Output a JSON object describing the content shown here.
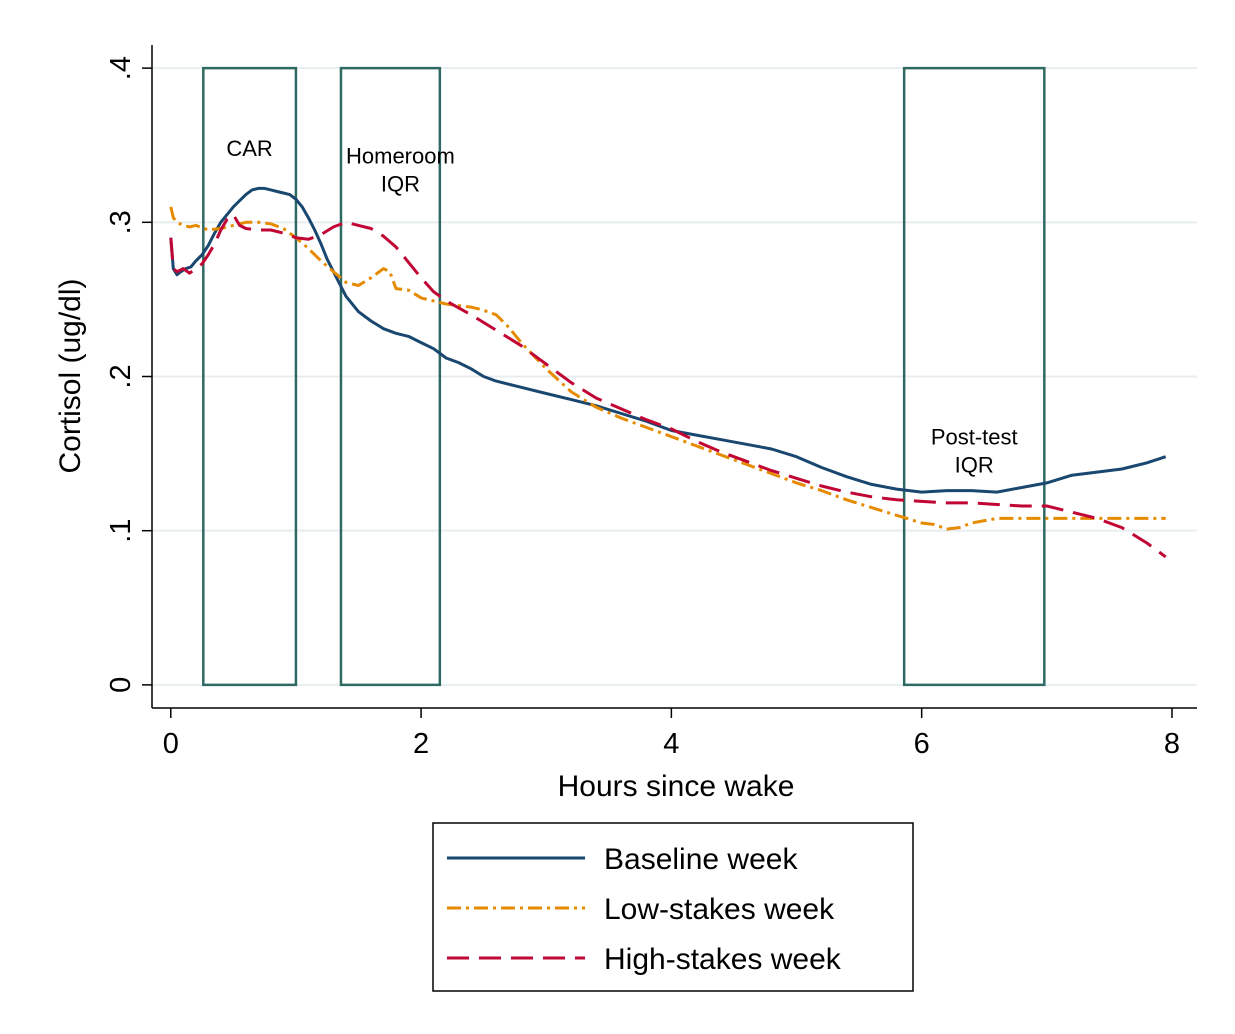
{
  "chart_data": {
    "type": "line",
    "title": "",
    "xlabel": "Hours since wake",
    "ylabel": "Cortisol (ug/dl)",
    "xlim": [
      -0.15,
      8.2
    ],
    "ylim": [
      -0.015,
      0.415
    ],
    "xticks": [
      0,
      2,
      4,
      6,
      8
    ],
    "xtick_labels": [
      "0",
      "2",
      "4",
      "6",
      "8"
    ],
    "yticks": [
      0,
      0.1,
      0.2,
      0.3,
      0.4
    ],
    "ytick_labels": [
      "0",
      ".1",
      ".2",
      ".3",
      ".4"
    ],
    "grid": "horizontal",
    "legend_position": "bottom",
    "colors": {
      "background": "#ffffff",
      "grid": "#e8eef0",
      "axis": "#000000",
      "box": "#2f6a62"
    },
    "windows": [
      {
        "x0": 0.26,
        "x1": 1.0,
        "y0": 0,
        "y1": 0.4,
        "label": [
          "CAR"
        ]
      },
      {
        "x0": 1.36,
        "x1": 2.15,
        "y0": 0,
        "y1": 0.4,
        "label": [
          "Homeroom",
          "IQR"
        ]
      },
      {
        "x0": 5.86,
        "x1": 6.98,
        "y0": 0,
        "y1": 0.4,
        "label": [
          "Post-test",
          "IQR"
        ]
      }
    ],
    "series": [
      {
        "name": "Baseline week",
        "color": "#1a476f",
        "dash": "",
        "x": [
          0,
          0.02,
          0.05,
          0.08,
          0.12,
          0.16,
          0.2,
          0.25,
          0.3,
          0.35,
          0.4,
          0.45,
          0.5,
          0.55,
          0.6,
          0.65,
          0.7,
          0.75,
          0.8,
          0.85,
          0.9,
          0.95,
          1.0,
          1.05,
          1.1,
          1.15,
          1.2,
          1.25,
          1.3,
          1.35,
          1.4,
          1.5,
          1.6,
          1.7,
          1.8,
          1.9,
          2.0,
          2.1,
          2.2,
          2.3,
          2.4,
          2.5,
          2.6,
          2.8,
          3.0,
          3.2,
          3.4,
          3.6,
          3.8,
          4.0,
          4.2,
          4.4,
          4.6,
          4.8,
          5.0,
          5.2,
          5.4,
          5.6,
          5.8,
          6.0,
          6.2,
          6.4,
          6.6,
          6.8,
          7.0,
          7.2,
          7.4,
          7.6,
          7.8,
          7.95
        ],
        "y": [
          0.29,
          0.27,
          0.266,
          0.268,
          0.27,
          0.271,
          0.275,
          0.279,
          0.285,
          0.293,
          0.3,
          0.305,
          0.31,
          0.314,
          0.318,
          0.321,
          0.322,
          0.322,
          0.321,
          0.32,
          0.319,
          0.318,
          0.315,
          0.31,
          0.303,
          0.295,
          0.286,
          0.276,
          0.268,
          0.26,
          0.252,
          0.242,
          0.236,
          0.231,
          0.228,
          0.226,
          0.222,
          0.218,
          0.212,
          0.209,
          0.205,
          0.2,
          0.197,
          0.193,
          0.189,
          0.185,
          0.181,
          0.176,
          0.171,
          0.165,
          0.162,
          0.159,
          0.156,
          0.153,
          0.148,
          0.141,
          0.135,
          0.13,
          0.127,
          0.125,
          0.126,
          0.126,
          0.125,
          0.128,
          0.131,
          0.136,
          0.138,
          0.14,
          0.144,
          0.148
        ]
      },
      {
        "name": "Low-stakes week",
        "color": "#e68a00",
        "dash": "14 5 3 5",
        "x": [
          0,
          0.02,
          0.05,
          0.1,
          0.15,
          0.2,
          0.3,
          0.4,
          0.5,
          0.6,
          0.7,
          0.8,
          0.9,
          1.0,
          1.1,
          1.2,
          1.3,
          1.4,
          1.5,
          1.6,
          1.7,
          1.75,
          1.8,
          1.9,
          2.0,
          2.1,
          2.2,
          2.3,
          2.4,
          2.5,
          2.6,
          2.7,
          2.8,
          3.0,
          3.2,
          3.4,
          3.6,
          3.8,
          4.0,
          4.2,
          4.4,
          4.6,
          4.8,
          5.0,
          5.2,
          5.4,
          5.6,
          5.8,
          6.0,
          6.1,
          6.2,
          6.3,
          6.4,
          6.6,
          6.8,
          7.0,
          7.2,
          7.4,
          7.6,
          7.8,
          7.95
        ],
        "y": [
          0.31,
          0.303,
          0.3,
          0.298,
          0.297,
          0.298,
          0.295,
          0.296,
          0.298,
          0.3,
          0.3,
          0.299,
          0.296,
          0.29,
          0.283,
          0.275,
          0.268,
          0.261,
          0.259,
          0.264,
          0.27,
          0.268,
          0.257,
          0.256,
          0.251,
          0.249,
          0.247,
          0.246,
          0.245,
          0.243,
          0.24,
          0.232,
          0.222,
          0.205,
          0.19,
          0.18,
          0.173,
          0.167,
          0.161,
          0.155,
          0.149,
          0.143,
          0.137,
          0.131,
          0.126,
          0.12,
          0.115,
          0.11,
          0.105,
          0.104,
          0.101,
          0.102,
          0.105,
          0.108,
          0.108,
          0.108,
          0.108,
          0.108,
          0.108,
          0.108,
          0.108
        ]
      },
      {
        "name": "High-stakes week",
        "color": "#c10534",
        "dash": "22 10",
        "x": [
          0,
          0.02,
          0.05,
          0.1,
          0.15,
          0.2,
          0.25,
          0.3,
          0.35,
          0.4,
          0.45,
          0.5,
          0.55,
          0.6,
          0.7,
          0.8,
          0.9,
          1.0,
          1.1,
          1.2,
          1.3,
          1.4,
          1.5,
          1.6,
          1.7,
          1.8,
          1.9,
          2.0,
          2.1,
          2.2,
          2.4,
          2.6,
          2.8,
          3.0,
          3.2,
          3.4,
          3.6,
          3.8,
          4.0,
          4.2,
          4.4,
          4.6,
          4.8,
          5.0,
          5.2,
          5.4,
          5.6,
          5.8,
          6.0,
          6.2,
          6.4,
          6.6,
          6.8,
          7.0,
          7.2,
          7.4,
          7.6,
          7.8,
          7.95
        ],
        "y": [
          0.29,
          0.27,
          0.268,
          0.27,
          0.267,
          0.27,
          0.273,
          0.279,
          0.286,
          0.295,
          0.302,
          0.305,
          0.298,
          0.296,
          0.295,
          0.295,
          0.293,
          0.29,
          0.289,
          0.292,
          0.297,
          0.3,
          0.298,
          0.296,
          0.291,
          0.284,
          0.274,
          0.264,
          0.255,
          0.249,
          0.24,
          0.23,
          0.22,
          0.208,
          0.196,
          0.186,
          0.179,
          0.172,
          0.166,
          0.158,
          0.151,
          0.145,
          0.139,
          0.134,
          0.129,
          0.125,
          0.122,
          0.12,
          0.119,
          0.118,
          0.118,
          0.117,
          0.116,
          0.116,
          0.112,
          0.108,
          0.102,
          0.092,
          0.083
        ]
      }
    ]
  }
}
